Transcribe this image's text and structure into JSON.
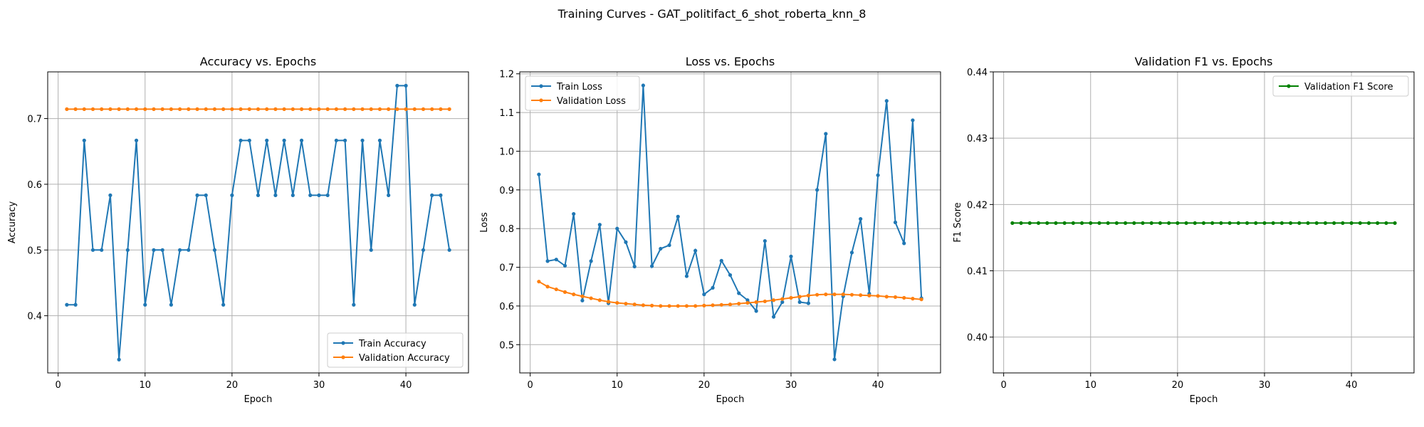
{
  "figure_title": "Training Curves - GAT_politifact_6_shot_roberta_knn_8",
  "colors": {
    "train": "#1f77b4",
    "validation": "#ff7f0e",
    "f1": "#008000",
    "grid": "#b0b0b0"
  },
  "chart_data": [
    {
      "type": "line",
      "title": "Accuracy vs. Epochs",
      "xlabel": "Epoch",
      "ylabel": "Accuracy",
      "xlim": [
        -1.2,
        47.2
      ],
      "ylim": [
        0.313,
        0.771
      ],
      "xticks": [
        0,
        10,
        20,
        30,
        40
      ],
      "yticks": [
        0.4,
        0.5,
        0.6,
        0.7
      ],
      "grid": true,
      "legend_position": "lower-right",
      "x": [
        1,
        2,
        3,
        4,
        5,
        6,
        7,
        8,
        9,
        10,
        11,
        12,
        13,
        14,
        15,
        16,
        17,
        18,
        19,
        20,
        21,
        22,
        23,
        24,
        25,
        26,
        27,
        28,
        29,
        30,
        31,
        32,
        33,
        34,
        35,
        36,
        37,
        38,
        39,
        40,
        41,
        42,
        43,
        44,
        45
      ],
      "series": [
        {
          "name": "Train Accuracy",
          "color": "#1f77b4",
          "values": [
            0.4167,
            0.4167,
            0.6667,
            0.5,
            0.5,
            0.5833,
            0.3333,
            0.5,
            0.6667,
            0.4167,
            0.5,
            0.5,
            0.4167,
            0.5,
            0.5,
            0.5833,
            0.5833,
            0.5,
            0.4167,
            0.5833,
            0.6667,
            0.6667,
            0.5833,
            0.6667,
            0.5833,
            0.6667,
            0.5833,
            0.6667,
            0.5833,
            0.5833,
            0.5833,
            0.6667,
            0.6667,
            0.4167,
            0.6667,
            0.5,
            0.6667,
            0.5833,
            0.75,
            0.75,
            0.4167,
            0.5,
            0.5833,
            0.5833,
            0.5
          ]
        },
        {
          "name": "Validation Accuracy",
          "color": "#ff7f0e",
          "values": [
            0.7143,
            0.7143,
            0.7143,
            0.7143,
            0.7143,
            0.7143,
            0.7143,
            0.7143,
            0.7143,
            0.7143,
            0.7143,
            0.7143,
            0.7143,
            0.7143,
            0.7143,
            0.7143,
            0.7143,
            0.7143,
            0.7143,
            0.7143,
            0.7143,
            0.7143,
            0.7143,
            0.7143,
            0.7143,
            0.7143,
            0.7143,
            0.7143,
            0.7143,
            0.7143,
            0.7143,
            0.7143,
            0.7143,
            0.7143,
            0.7143,
            0.7143,
            0.7143,
            0.7143,
            0.7143,
            0.7143,
            0.7143,
            0.7143,
            0.7143,
            0.7143,
            0.7143
          ]
        }
      ]
    },
    {
      "type": "line",
      "title": "Loss vs. Epochs",
      "xlabel": "Epoch",
      "ylabel": "Loss",
      "xlim": [
        -1.2,
        47.2
      ],
      "ylim": [
        0.427,
        1.205
      ],
      "xticks": [
        0,
        10,
        20,
        30,
        40
      ],
      "yticks": [
        0.5,
        0.6,
        0.7,
        0.8,
        0.9,
        1.0,
        1.1,
        1.2
      ],
      "grid": true,
      "legend_position": "upper-left",
      "x": [
        1,
        2,
        3,
        4,
        5,
        6,
        7,
        8,
        9,
        10,
        11,
        12,
        13,
        14,
        15,
        16,
        17,
        18,
        19,
        20,
        21,
        22,
        23,
        24,
        25,
        26,
        27,
        28,
        29,
        30,
        31,
        32,
        33,
        34,
        35,
        36,
        37,
        38,
        39,
        40,
        41,
        42,
        43,
        44,
        45
      ],
      "series": [
        {
          "name": "Train Loss",
          "color": "#1f77b4",
          "values": [
            0.94,
            0.716,
            0.72,
            0.704,
            0.838,
            0.614,
            0.716,
            0.81,
            0.607,
            0.8,
            0.765,
            0.702,
            1.17,
            0.703,
            0.748,
            0.757,
            0.831,
            0.677,
            0.743,
            0.63,
            0.647,
            0.717,
            0.68,
            0.633,
            0.615,
            0.587,
            0.768,
            0.572,
            0.61,
            0.728,
            0.61,
            0.607,
            0.9,
            1.045,
            0.462,
            0.625,
            0.738,
            0.825,
            0.632,
            0.938,
            1.13,
            0.816,
            0.762,
            1.08,
            0.62
          ]
        },
        {
          "name": "Validation Loss",
          "color": "#ff7f0e",
          "values": [
            0.663,
            0.65,
            0.643,
            0.636,
            0.63,
            0.625,
            0.62,
            0.615,
            0.611,
            0.608,
            0.606,
            0.604,
            0.602,
            0.601,
            0.6,
            0.6,
            0.6,
            0.6,
            0.6,
            0.601,
            0.602,
            0.603,
            0.604,
            0.606,
            0.608,
            0.61,
            0.612,
            0.615,
            0.618,
            0.621,
            0.624,
            0.627,
            0.629,
            0.63,
            0.63,
            0.63,
            0.629,
            0.628,
            0.627,
            0.626,
            0.624,
            0.623,
            0.621,
            0.619,
            0.617
          ]
        }
      ]
    },
    {
      "type": "line",
      "title": "Validation F1 vs. Epochs",
      "xlabel": "Epoch",
      "ylabel": "F1 Score",
      "xlim": [
        -1.2,
        47.2
      ],
      "ylim": [
        0.3946,
        0.44
      ],
      "xticks": [
        0,
        10,
        20,
        30,
        40
      ],
      "yticks": [
        0.4,
        0.41,
        0.42,
        0.43,
        0.44
      ],
      "ytick_labels": [
        "0.40",
        "0.41",
        "0.42",
        "0.43",
        "0.44"
      ],
      "grid": true,
      "legend_position": "upper-right",
      "x": [
        1,
        2,
        3,
        4,
        5,
        6,
        7,
        8,
        9,
        10,
        11,
        12,
        13,
        14,
        15,
        16,
        17,
        18,
        19,
        20,
        21,
        22,
        23,
        24,
        25,
        26,
        27,
        28,
        29,
        30,
        31,
        32,
        33,
        34,
        35,
        36,
        37,
        38,
        39,
        40,
        41,
        42,
        43,
        44,
        45
      ],
      "series": [
        {
          "name": "Validation F1 Score",
          "color": "#008000",
          "values": [
            0.4172,
            0.4172,
            0.4172,
            0.4172,
            0.4172,
            0.4172,
            0.4172,
            0.4172,
            0.4172,
            0.4172,
            0.4172,
            0.4172,
            0.4172,
            0.4172,
            0.4172,
            0.4172,
            0.4172,
            0.4172,
            0.4172,
            0.4172,
            0.4172,
            0.4172,
            0.4172,
            0.4172,
            0.4172,
            0.4172,
            0.4172,
            0.4172,
            0.4172,
            0.4172,
            0.4172,
            0.4172,
            0.4172,
            0.4172,
            0.4172,
            0.4172,
            0.4172,
            0.4172,
            0.4172,
            0.4172,
            0.4172,
            0.4172,
            0.4172,
            0.4172,
            0.4172
          ]
        }
      ]
    }
  ]
}
